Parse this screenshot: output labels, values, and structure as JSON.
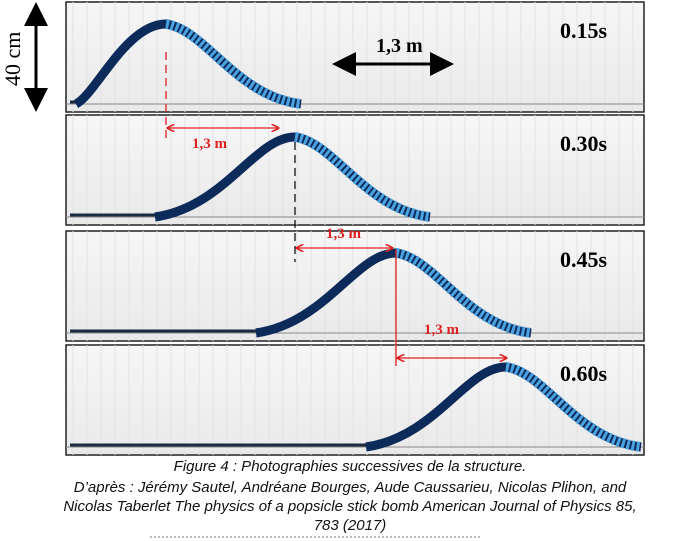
{
  "figure": {
    "scale_vertical": "40 cm",
    "scale_horizontal": "1,3 m",
    "frames": [
      {
        "time": "0.15s"
      },
      {
        "time": "0.30s"
      },
      {
        "time": "0.45s"
      },
      {
        "time": "0.60s"
      }
    ],
    "displacement_label": "1,3 m",
    "colors": {
      "wave_dark": "#0c2a5a",
      "wave_light": "#4aa3e0",
      "arrow": "#e02020"
    }
  },
  "caption": {
    "title": "Figure 4 : Photographies successives de la structure.",
    "line1": "D’après : Jérémy Sautel, Andréane Bourges, Aude Caussarieu, Nicolas Plihon, and",
    "line2": "Nicolas Taberlet The physics of a popsicle stick bomb American Journal of Physics 85,",
    "line3": "783 (2017)"
  }
}
